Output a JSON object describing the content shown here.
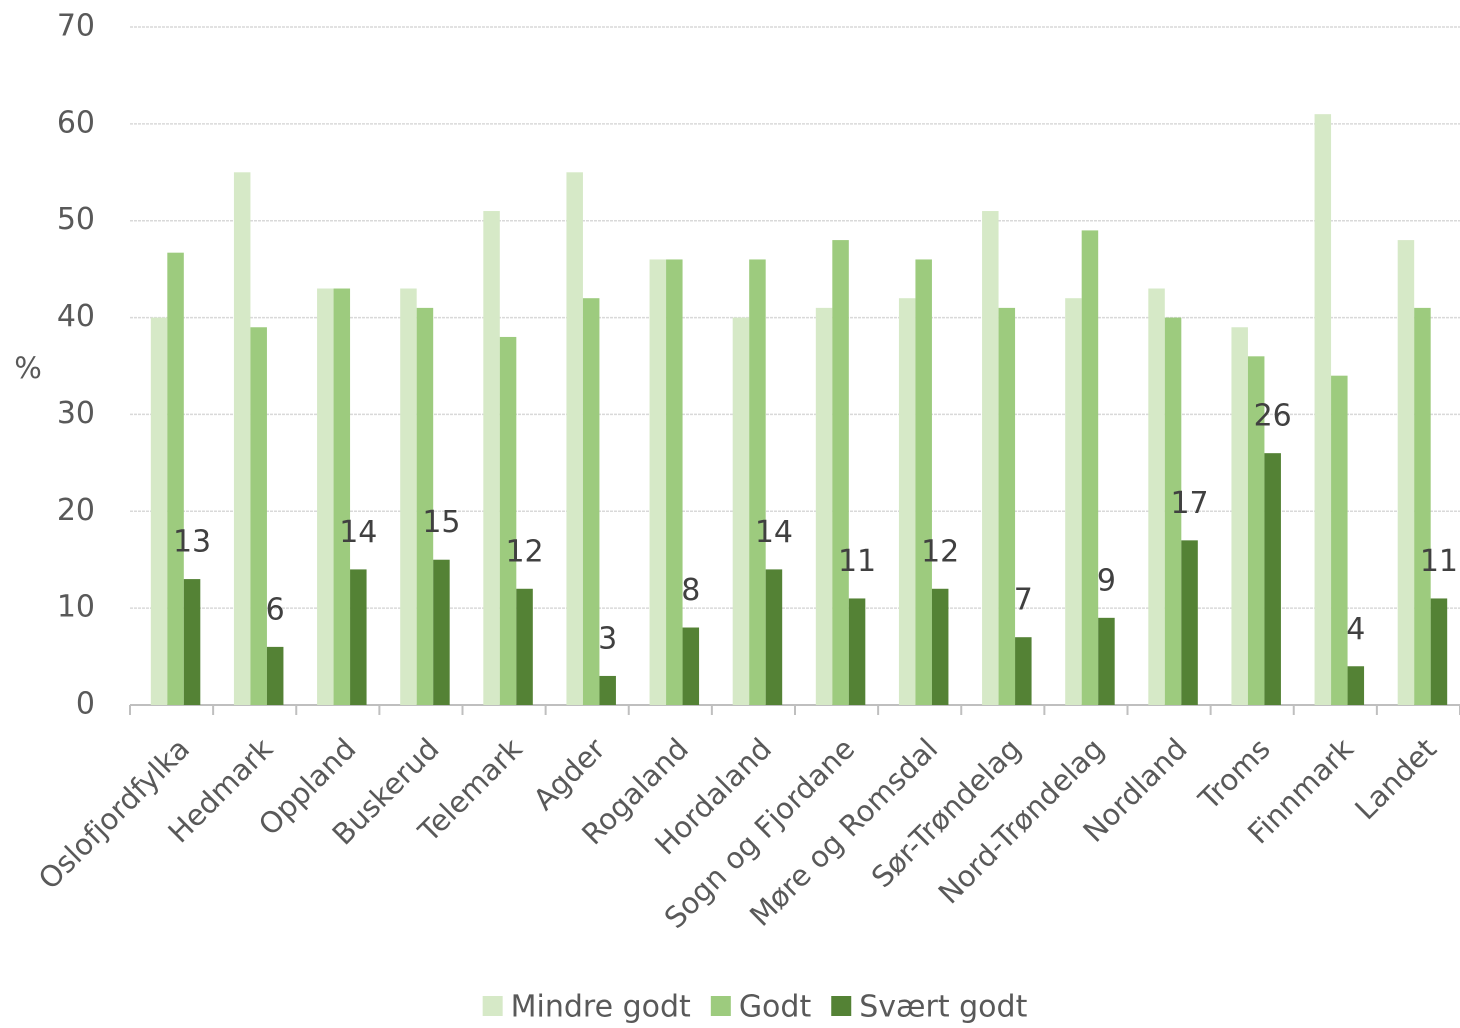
{
  "chart_data": {
    "type": "bar",
    "y_label": "%",
    "categories": [
      "Oslofjordfylka",
      "Hedmark",
      "Oppland",
      "Buskerud",
      "Telemark",
      "Agder",
      "Rogaland",
      "Hordaland",
      "Sogn og Fjordane",
      "Møre og Romsdal",
      "Sør-Trøndelag",
      "Nord-Trøndelag",
      "Nordland",
      "Troms",
      "Finnmark",
      "Landet"
    ],
    "series": [
      {
        "name": "Mindre godt",
        "color": "#d6e9c7",
        "values": [
          40,
          55,
          43,
          43,
          51,
          55,
          46,
          40,
          41,
          42,
          51,
          42,
          43,
          39,
          61,
          48
        ]
      },
      {
        "name": "Godt",
        "color": "#9dcb7e",
        "values": [
          46.7,
          39,
          43,
          41,
          38,
          42,
          46,
          46,
          48,
          46,
          41,
          49,
          40,
          36,
          34,
          41
        ]
      },
      {
        "name": "Svært godt",
        "color": "#548235",
        "values": [
          13,
          6,
          14,
          15,
          12,
          3,
          8,
          14,
          11,
          12,
          7,
          9,
          17,
          26,
          4,
          11
        ],
        "data_labels": true
      }
    ],
    "ylim": [
      0,
      70
    ],
    "yticks": [
      0,
      10,
      20,
      30,
      40,
      50,
      60,
      70
    ],
    "grid": true,
    "legend": "bottom"
  }
}
